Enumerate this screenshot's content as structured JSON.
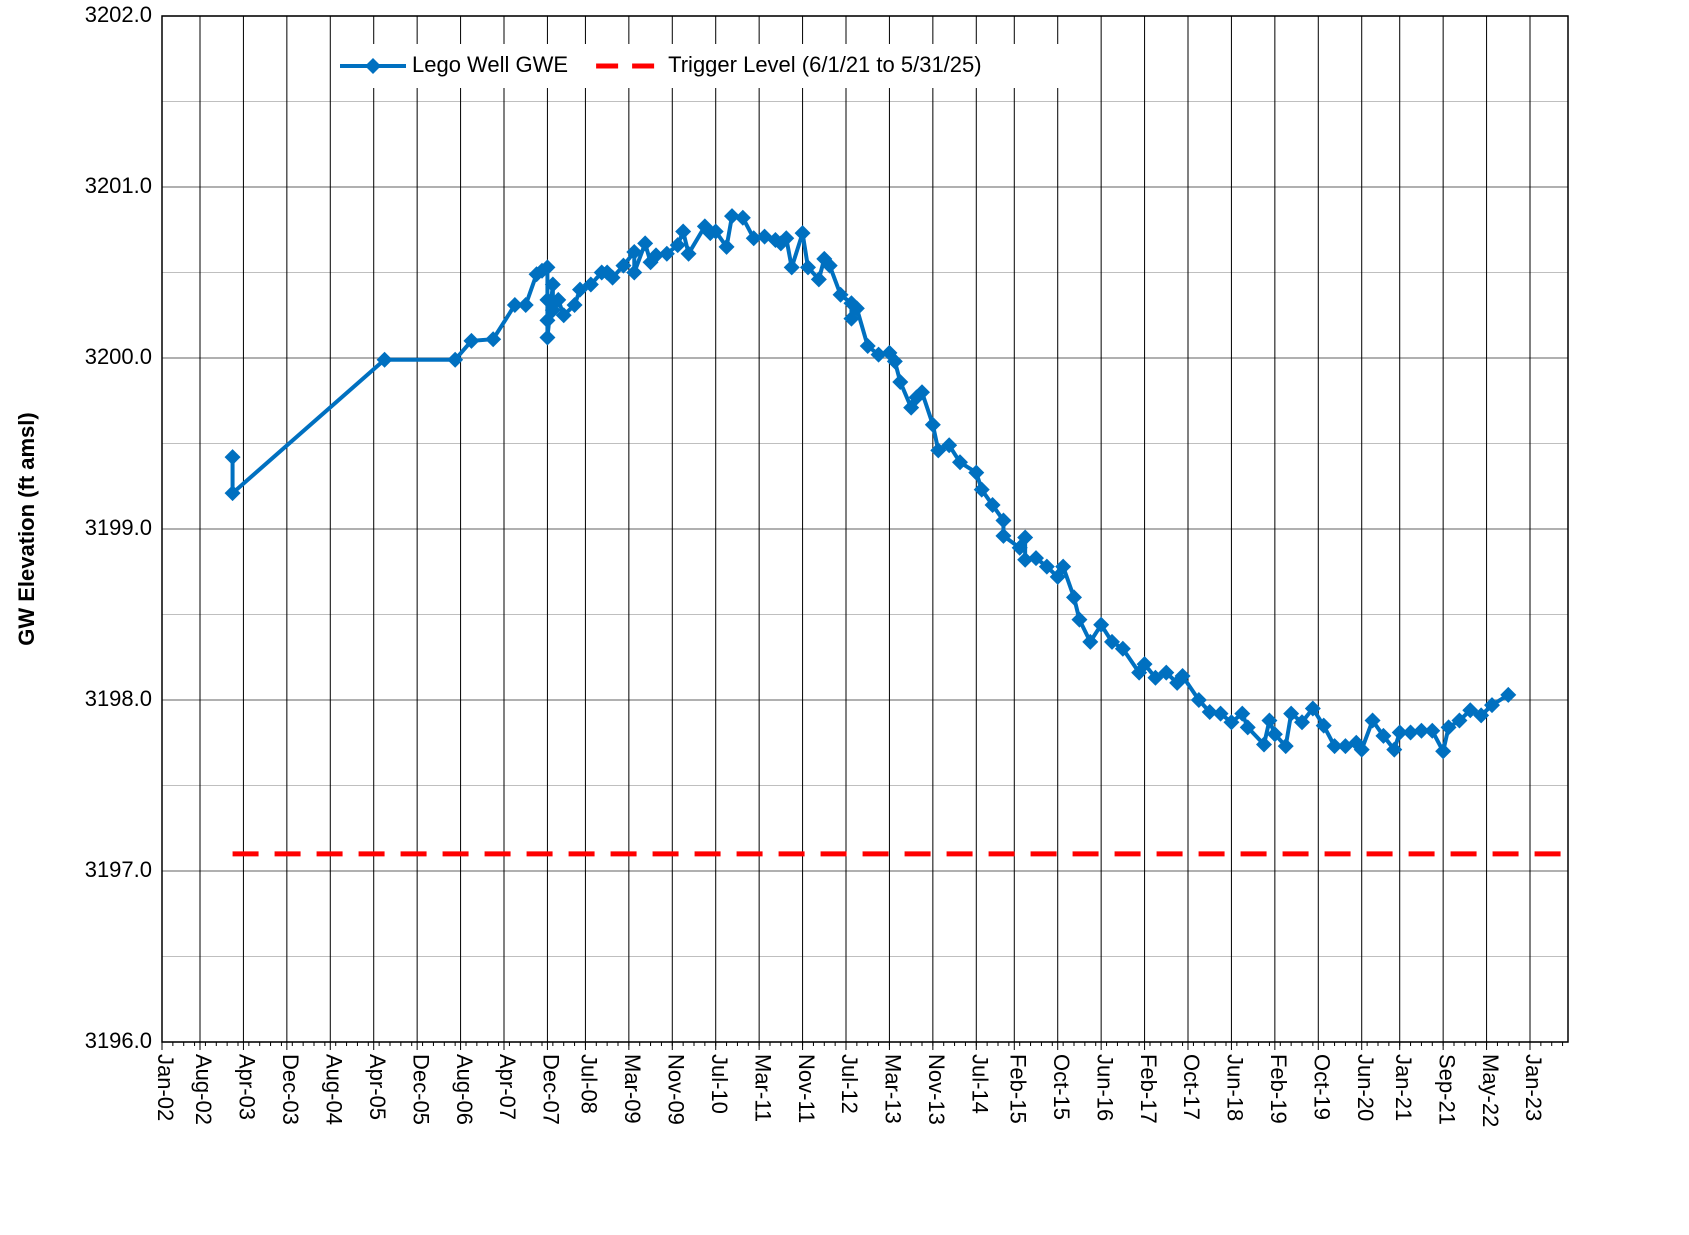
{
  "chart_data": {
    "type": "line",
    "y_label": "GW Elevation (ft amsl)",
    "xlim": [
      "2002-01",
      "2023-08"
    ],
    "ylim": [
      3196,
      3202
    ],
    "grid": true,
    "legend": "top",
    "yticks": [
      {
        "value": 3196,
        "label": "3196.0"
      },
      {
        "value": 3197,
        "label": "3197.0"
      },
      {
        "value": 3198,
        "label": "3198.0"
      },
      {
        "value": 3199,
        "label": "3199.0"
      },
      {
        "value": 3200,
        "label": "3200.0"
      },
      {
        "value": 3201,
        "label": "3201.0"
      },
      {
        "value": 3202,
        "label": "3202.0"
      }
    ],
    "xticks": [
      {
        "value": "2002-01",
        "label": "Jan-02"
      },
      {
        "value": "2002-08",
        "label": "Aug-02"
      },
      {
        "value": "2003-04",
        "label": "Apr-03"
      },
      {
        "value": "2003-12",
        "label": "Dec-03"
      },
      {
        "value": "2004-08",
        "label": "Aug-04"
      },
      {
        "value": "2005-04",
        "label": "Apr-05"
      },
      {
        "value": "2005-12",
        "label": "Dec-05"
      },
      {
        "value": "2006-08",
        "label": "Aug-06"
      },
      {
        "value": "2007-04",
        "label": "Apr-07"
      },
      {
        "value": "2007-12",
        "label": "Dec-07"
      },
      {
        "value": "2008-07",
        "label": "Jul-08"
      },
      {
        "value": "2009-03",
        "label": "Mar-09"
      },
      {
        "value": "2009-11",
        "label": "Nov-09"
      },
      {
        "value": "2010-07",
        "label": "Jul-10"
      },
      {
        "value": "2011-03",
        "label": "Mar-11"
      },
      {
        "value": "2011-11",
        "label": "Nov-11"
      },
      {
        "value": "2012-07",
        "label": "Jul-12"
      },
      {
        "value": "2013-03",
        "label": "Mar-13"
      },
      {
        "value": "2013-11",
        "label": "Nov-13"
      },
      {
        "value": "2014-07",
        "label": "Jul-14"
      },
      {
        "value": "2015-02",
        "label": "Feb-15"
      },
      {
        "value": "2015-10",
        "label": "Oct-15"
      },
      {
        "value": "2016-06",
        "label": "Jun-16"
      },
      {
        "value": "2017-02",
        "label": "Feb-17"
      },
      {
        "value": "2017-10",
        "label": "Oct-17"
      },
      {
        "value": "2018-06",
        "label": "Jun-18"
      },
      {
        "value": "2019-02",
        "label": "Feb-19"
      },
      {
        "value": "2019-10",
        "label": "Oct-19"
      },
      {
        "value": "2020-06",
        "label": "Jun-20"
      },
      {
        "value": "2021-01",
        "label": "Jan-21"
      },
      {
        "value": "2021-09",
        "label": "Sep-21"
      },
      {
        "value": "2022-05",
        "label": "May-22"
      },
      {
        "value": "2023-01",
        "label": "Jan-23"
      }
    ],
    "series": [
      {
        "name": "Lego Well GWE",
        "color": "#0070c0",
        "marker": "diamond",
        "x": [
          "2003-02",
          "2003-02",
          "2005-06",
          "2006-07",
          "2006-10",
          "2007-02",
          "2007-06",
          "2007-08",
          "2007-10",
          "2007-11",
          "2007-12",
          "2007-12",
          "2007-12",
          "2007-12",
          "2008-01",
          "2008-01",
          "2008-02",
          "2008-03",
          "2008-05",
          "2008-06",
          "2008-08",
          "2008-10",
          "2008-11",
          "2008-12",
          "2009-02",
          "2009-04",
          "2009-04",
          "2009-06",
          "2009-07",
          "2009-08",
          "2009-10",
          "2009-12",
          "2010-01",
          "2010-02",
          "2010-05",
          "2010-06",
          "2010-07",
          "2010-09",
          "2010-10",
          "2010-12",
          "2011-02",
          "2011-04",
          "2011-06",
          "2011-07",
          "2011-08",
          "2011-09",
          "2011-11",
          "2011-12",
          "2012-02",
          "2012-03",
          "2012-04",
          "2012-06",
          "2012-08",
          "2012-08",
          "2012-09",
          "2012-11",
          "2013-01",
          "2013-03",
          "2013-04",
          "2013-05",
          "2013-07",
          "2013-08",
          "2013-09",
          "2013-11",
          "2013-12",
          "2014-02",
          "2014-04",
          "2014-07",
          "2014-08",
          "2014-10",
          "2014-12",
          "2014-12",
          "2015-03",
          "2015-04",
          "2015-04",
          "2015-06",
          "2015-08",
          "2015-10",
          "2015-11",
          "2016-01",
          "2016-02",
          "2016-04",
          "2016-06",
          "2016-08",
          "2016-10",
          "2017-01",
          "2017-02",
          "2017-04",
          "2017-06",
          "2017-08",
          "2017-09",
          "2017-12",
          "2018-02",
          "2018-04",
          "2018-06",
          "2018-08",
          "2018-09",
          "2018-12",
          "2019-01",
          "2019-02",
          "2019-04",
          "2019-05",
          "2019-07",
          "2019-09",
          "2019-11",
          "2020-01",
          "2020-03",
          "2020-05",
          "2020-06",
          "2020-08",
          "2020-10",
          "2020-12",
          "2021-01",
          "2021-03",
          "2021-05",
          "2021-07",
          "2021-09",
          "2021-10",
          "2021-12",
          "2022-02",
          "2022-04",
          "2022-06",
          "2022-09"
        ],
        "values": [
          3199.42,
          3199.21,
          3199.99,
          3199.99,
          3200.1,
          3200.11,
          3200.31,
          3200.31,
          3200.49,
          3200.51,
          3200.53,
          3200.34,
          3200.22,
          3200.12,
          3200.43,
          3200.28,
          3200.34,
          3200.25,
          3200.31,
          3200.4,
          3200.43,
          3200.5,
          3200.5,
          3200.47,
          3200.54,
          3200.62,
          3200.5,
          3200.67,
          3200.56,
          3200.6,
          3200.61,
          3200.66,
          3200.74,
          3200.61,
          3200.77,
          3200.73,
          3200.74,
          3200.65,
          3200.83,
          3200.82,
          3200.7,
          3200.71,
          3200.69,
          3200.67,
          3200.7,
          3200.53,
          3200.73,
          3200.53,
          3200.46,
          3200.58,
          3200.54,
          3200.37,
          3200.32,
          3200.23,
          3200.29,
          3200.07,
          3200.02,
          3200.03,
          3199.98,
          3199.86,
          3199.71,
          3199.77,
          3199.8,
          3199.61,
          3199.46,
          3199.49,
          3199.39,
          3199.33,
          3199.23,
          3199.14,
          3199.05,
          3198.96,
          3198.89,
          3198.95,
          3198.82,
          3198.83,
          3198.78,
          3198.72,
          3198.78,
          3198.6,
          3198.47,
          3198.34,
          3198.44,
          3198.34,
          3198.3,
          3198.16,
          3198.21,
          3198.13,
          3198.16,
          3198.1,
          3198.14,
          3198.0,
          3197.93,
          3197.92,
          3197.87,
          3197.92,
          3197.84,
          3197.74,
          3197.88,
          3197.8,
          3197.73,
          3197.92,
          3197.87,
          3197.95,
          3197.85,
          3197.73,
          3197.73,
          3197.75,
          3197.71,
          3197.88,
          3197.79,
          3197.71,
          3197.81,
          3197.81,
          3197.82,
          3197.82,
          3197.7,
          3197.84,
          3197.88,
          3197.94,
          3197.91,
          3197.97,
          3198.03
        ]
      },
      {
        "name": "Trigger Level (6/1/21 to 5/31/25)",
        "color": "#ff0000",
        "dash": true,
        "x": [
          "2003-02",
          "2023-08"
        ],
        "values": [
          3197.1,
          3197.1
        ]
      }
    ]
  }
}
